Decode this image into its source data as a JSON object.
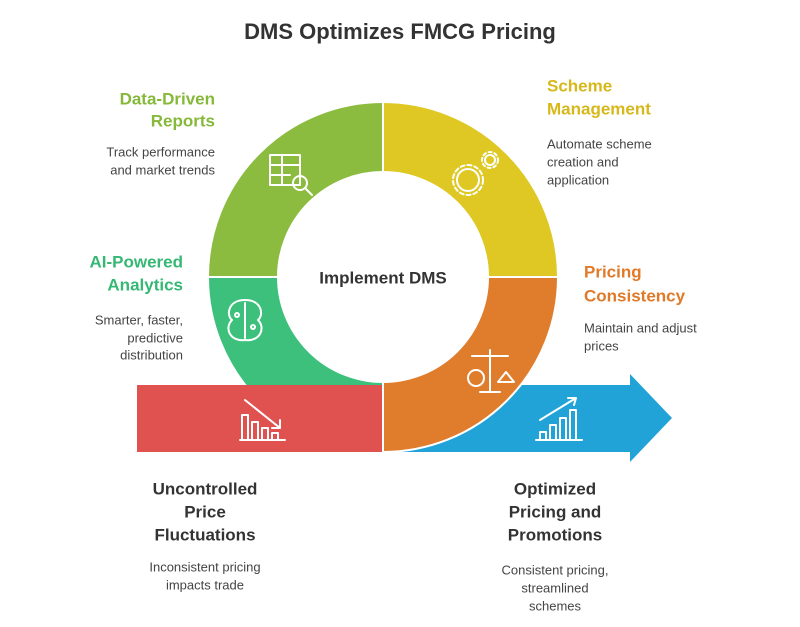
{
  "title": "DMS Optimizes FMCG Pricing",
  "center_label": "Implement DMS",
  "stages": [
    {
      "title_lines": [
        "Data-Driven",
        "Reports"
      ],
      "description_lines": [
        "Track performance",
        "and market trends"
      ]
    },
    {
      "title_lines": [
        "Scheme",
        "Management"
      ],
      "description_lines": [
        "Automate scheme",
        "creation and",
        "application"
      ]
    },
    {
      "title_lines": [
        "AI-Powered",
        "Analytics"
      ],
      "description_lines": [
        "Smarter, faster,",
        "predictive",
        "distribution"
      ]
    },
    {
      "title_lines": [
        "Pricing",
        "Consistency"
      ],
      "description_lines": [
        "Maintain and adjust",
        "prices"
      ]
    },
    {
      "title_lines": [
        "Uncontrolled",
        "Price",
        "Fluctuations"
      ],
      "description_lines": [
        "Inconsistent pricing",
        "impacts trade"
      ]
    },
    {
      "title_lines": [
        "Optimized",
        "Pricing and",
        "Promotions"
      ],
      "description_lines": [
        "Consistent pricing,",
        "streamlined",
        "schemes"
      ]
    }
  ]
}
